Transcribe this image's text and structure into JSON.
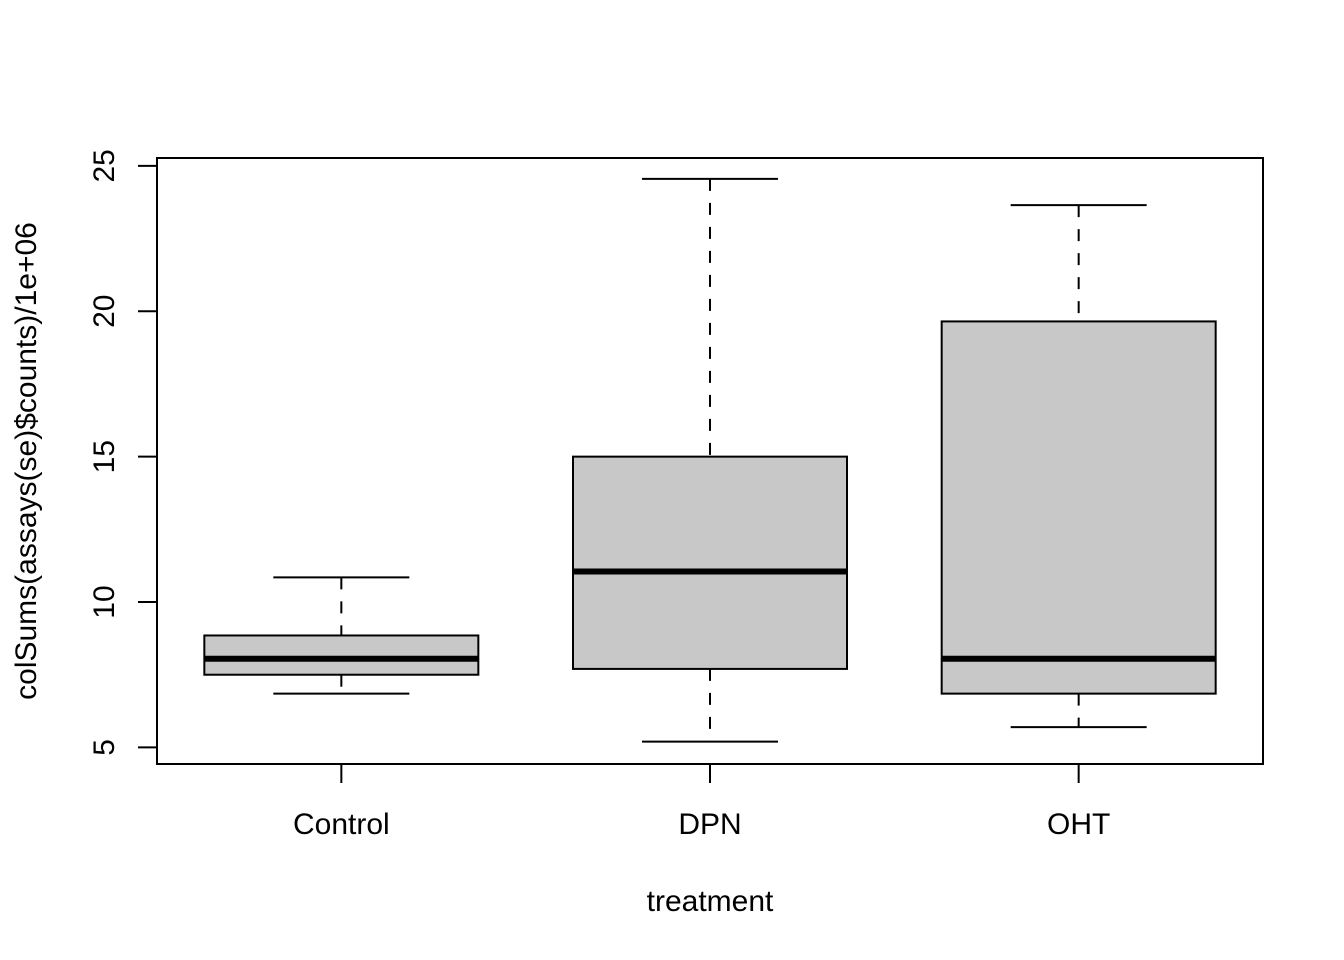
{
  "chart_data": {
    "type": "boxplot",
    "title": "",
    "xlabel": "treatment",
    "ylabel": "colSums(assays(se)$counts)/1e+06",
    "categories": [
      "Control",
      "DPN",
      "OHT"
    ],
    "boxes": [
      {
        "category": "Control",
        "whisker_low": 6.85,
        "q1": 7.5,
        "median": 8.05,
        "q3": 8.85,
        "whisker_high": 10.85
      },
      {
        "category": "DPN",
        "whisker_low": 5.2,
        "q1": 7.7,
        "median": 11.05,
        "q3": 15.0,
        "whisker_high": 24.55
      },
      {
        "category": "OHT",
        "whisker_low": 5.7,
        "q1": 6.85,
        "median": 8.05,
        "q3": 19.65,
        "whisker_high": 23.65
      }
    ],
    "yticks": [
      5,
      10,
      15,
      20,
      25
    ],
    "ylim": [
      4.43,
      25.27
    ],
    "grid": false,
    "legend": "none",
    "colors": {
      "box_fill": "#c8c8c8",
      "stroke": "#000000"
    }
  }
}
